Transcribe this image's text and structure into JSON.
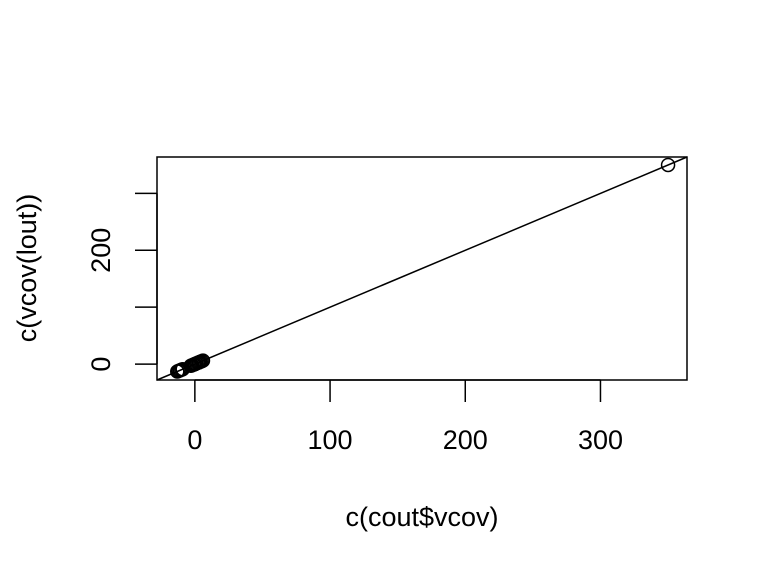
{
  "chart_data": {
    "type": "scatter",
    "title": "",
    "xlabel": "c(cout$vcov)",
    "ylabel": "c(vcov(lout))",
    "xlim": [
      -28,
      364
    ],
    "ylim": [
      -28,
      364
    ],
    "x_ticks": [
      0,
      100,
      200,
      300
    ],
    "x_tick_labels": [
      "0",
      "100",
      "200",
      "300"
    ],
    "y_ticks": [
      0,
      100,
      200,
      300
    ],
    "y_tick_labels": [
      "0",
      "",
      "200",
      ""
    ],
    "grid": false,
    "legend": "none",
    "reference_line": {
      "intercept": 0,
      "slope": 1
    },
    "series": [
      {
        "marker": "open-circle",
        "x": [
          350,
          -13,
          -12,
          -11,
          -10,
          -9,
          -2,
          -1,
          0,
          1,
          2,
          3,
          4,
          5,
          6,
          -3,
          0,
          3
        ],
        "y": [
          350,
          -13,
          -12,
          -11,
          -10,
          -9,
          -2,
          -1,
          0,
          1,
          2,
          3,
          4,
          5,
          6,
          -3,
          0,
          3
        ]
      }
    ]
  },
  "colors": {
    "axis": "#000000",
    "points": "#000000",
    "background": "#ffffff"
  }
}
